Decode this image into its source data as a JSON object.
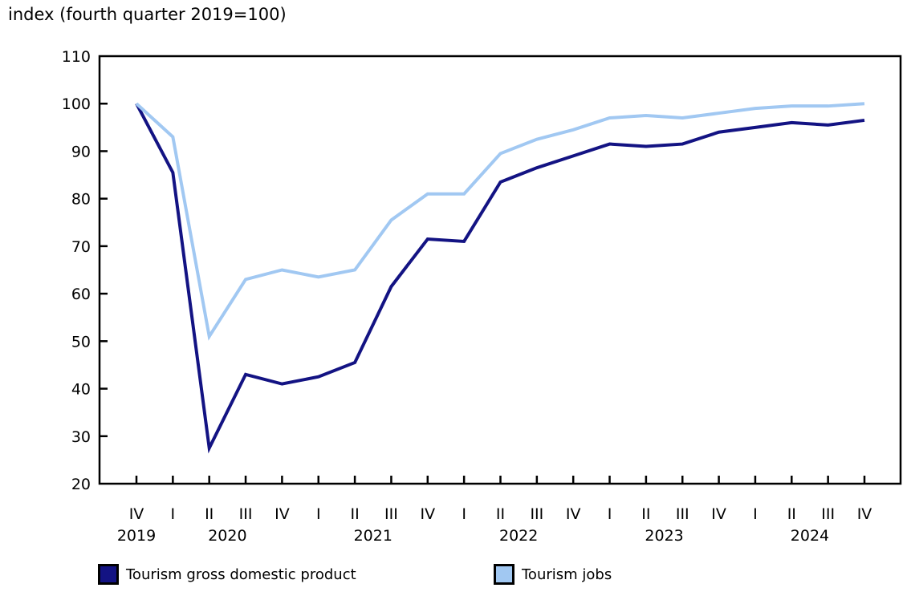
{
  "title": "index (fourth quarter 2019=100)",
  "chart_data": {
    "type": "line",
    "title": "index (fourth quarter 2019=100)",
    "xlabel": "",
    "ylabel": "index (fourth quarter 2019=100)",
    "ylim": [
      20,
      110
    ],
    "ytick_step": 10,
    "grid": false,
    "legend_position": "bottom",
    "x_quarters": [
      "IV",
      "I",
      "II",
      "III",
      "IV",
      "I",
      "II",
      "III",
      "IV",
      "I",
      "II",
      "III",
      "IV",
      "I",
      "II",
      "III",
      "IV",
      "I",
      "II",
      "III",
      "IV"
    ],
    "x_years": [
      {
        "label": "2019",
        "center_index": 0
      },
      {
        "label": "2020",
        "center_index": 2.5
      },
      {
        "label": "2021",
        "center_index": 6.5
      },
      {
        "label": "2022",
        "center_index": 10.5
      },
      {
        "label": "2023",
        "center_index": 14.5
      },
      {
        "label": "2024",
        "center_index": 18.5
      }
    ],
    "series": [
      {
        "name": "Tourism gross domestic product",
        "color": "#131383",
        "values": [
          100,
          85.5,
          27.5,
          43,
          41,
          42.5,
          45.5,
          61.5,
          71.5,
          71,
          83.5,
          86.5,
          89,
          91.5,
          91,
          91.5,
          94,
          95,
          96,
          95.5,
          96.5
        ]
      },
      {
        "name": "Tourism jobs",
        "color": "#a1c8f2",
        "values": [
          100,
          93,
          51,
          63,
          65,
          63.5,
          65,
          75.5,
          81,
          81,
          89.5,
          92.5,
          94.5,
          97,
          97.5,
          97,
          98,
          99,
          99.5,
          99.5,
          100
        ]
      }
    ],
    "axis_color": "#000000"
  }
}
